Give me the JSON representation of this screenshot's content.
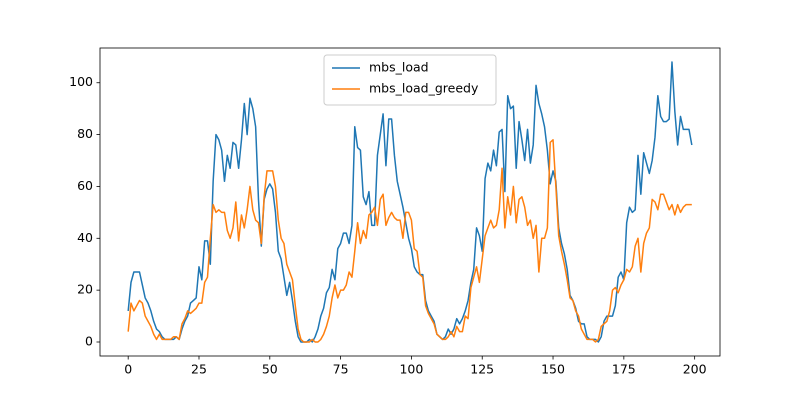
{
  "chart_data": {
    "type": "line",
    "x": [
      0,
      1,
      2,
      3,
      4,
      5,
      6,
      7,
      8,
      9,
      10,
      11,
      12,
      13,
      14,
      15,
      16,
      17,
      18,
      19,
      20,
      21,
      22,
      23,
      24,
      25,
      26,
      27,
      28,
      29,
      30,
      31,
      32,
      33,
      34,
      35,
      36,
      37,
      38,
      39,
      40,
      41,
      42,
      43,
      44,
      45,
      46,
      47,
      48,
      49,
      50,
      51,
      52,
      53,
      54,
      55,
      56,
      57,
      58,
      59,
      60,
      61,
      62,
      63,
      64,
      65,
      66,
      67,
      68,
      69,
      70,
      71,
      72,
      73,
      74,
      75,
      76,
      77,
      78,
      79,
      80,
      81,
      82,
      83,
      84,
      85,
      86,
      87,
      88,
      89,
      90,
      91,
      92,
      93,
      94,
      95,
      96,
      97,
      98,
      99,
      100,
      101,
      102,
      103,
      104,
      105,
      106,
      107,
      108,
      109,
      110,
      111,
      112,
      113,
      114,
      115,
      116,
      117,
      118,
      119,
      120,
      121,
      122,
      123,
      124,
      125,
      126,
      127,
      128,
      129,
      130,
      131,
      132,
      133,
      134,
      135,
      136,
      137,
      138,
      139,
      140,
      141,
      142,
      143,
      144,
      145,
      146,
      147,
      148,
      149,
      150,
      151,
      152,
      153,
      154,
      155,
      156,
      157,
      158,
      159,
      160,
      161,
      162,
      163,
      164,
      165,
      166,
      167,
      168,
      169,
      170,
      171,
      172,
      173,
      174,
      175,
      176,
      177,
      178,
      179,
      180,
      181,
      182,
      183,
      184,
      185,
      186,
      187,
      188,
      189,
      190,
      191,
      192,
      193,
      194,
      195,
      196,
      197,
      198,
      199
    ],
    "series": [
      {
        "name": "mbs_load",
        "color": "#1f77b4",
        "values": [
          12,
          23,
          27,
          27,
          27,
          22,
          17,
          15,
          12,
          8,
          5,
          4,
          2,
          1,
          1,
          1,
          1,
          2,
          1,
          5,
          8,
          10,
          15,
          16,
          17,
          29,
          24,
          39,
          39,
          30,
          62,
          80,
          78,
          74,
          62,
          72,
          67,
          77,
          76,
          67,
          78,
          92,
          80,
          94,
          90,
          83,
          55,
          37,
          55,
          59,
          61,
          59,
          50,
          35,
          32,
          25,
          18,
          23,
          16,
          8,
          2,
          0,
          0,
          0,
          1,
          0,
          2,
          5,
          10,
          13,
          19,
          21,
          28,
          24,
          36,
          38,
          42,
          42,
          38,
          45,
          83,
          75,
          74,
          56,
          53,
          58,
          45,
          45,
          72,
          80,
          88,
          68,
          86,
          86,
          72,
          62,
          57,
          52,
          46,
          40,
          36,
          29,
          27,
          26,
          26,
          16,
          12,
          10,
          8,
          3,
          2,
          1,
          2,
          5,
          3,
          5,
          9,
          7,
          9,
          12,
          16,
          23,
          28,
          44,
          41,
          35,
          63,
          69,
          66,
          74,
          68,
          81,
          82,
          58,
          95,
          90,
          91,
          67,
          85,
          78,
          70,
          82,
          69,
          76,
          99,
          92,
          88,
          83,
          74,
          61,
          66,
          62,
          44,
          38,
          34,
          28,
          18,
          16,
          13,
          8,
          7,
          7,
          2,
          1,
          1,
          1,
          0,
          2,
          8,
          10,
          10,
          10,
          14,
          25,
          27,
          24,
          46,
          52,
          50,
          51,
          72,
          57,
          73,
          69,
          65,
          70,
          79,
          95,
          87,
          85,
          85,
          86,
          108,
          89,
          76,
          87,
          82,
          82,
          82,
          76
        ]
      },
      {
        "name": "mbs_load_greedy",
        "color": "#ff7f0e",
        "values": [
          4,
          15,
          12,
          14,
          16,
          15,
          10,
          8,
          6,
          3,
          1,
          3,
          1,
          1,
          1,
          1,
          2,
          2,
          1,
          7,
          9,
          12,
          11,
          12,
          13,
          15,
          15,
          23,
          25,
          40,
          53,
          50,
          51,
          50,
          50,
          43,
          40,
          44,
          54,
          39,
          49,
          44,
          51,
          60,
          51,
          47,
          46,
          38,
          56,
          66,
          66,
          66,
          60,
          47,
          40,
          38,
          30,
          27,
          24,
          14,
          5,
          1,
          0,
          0,
          0,
          1,
          0,
          0,
          1,
          3,
          6,
          10,
          17,
          22,
          17,
          20,
          20,
          22,
          27,
          25,
          35,
          46,
          38,
          43,
          40,
          49,
          50,
          52,
          45,
          55,
          57,
          45,
          48,
          50,
          48,
          47,
          47,
          40,
          50,
          50,
          47,
          36,
          35,
          26,
          25,
          14,
          11,
          9,
          7,
          3,
          2,
          1,
          1,
          2,
          4,
          2,
          6,
          4,
          4,
          10,
          9,
          21,
          25,
          29,
          23,
          32,
          41,
          44,
          47,
          44,
          45,
          51,
          67,
          44,
          56,
          49,
          60,
          46,
          55,
          56,
          52,
          45,
          47,
          40,
          45,
          27,
          40,
          40,
          44,
          77,
          78,
          60,
          41,
          35,
          30,
          24,
          17,
          16,
          12,
          10,
          5,
          3,
          1,
          1,
          1,
          0,
          1,
          6,
          7,
          8,
          12,
          20,
          21,
          19,
          22,
          24,
          28,
          27,
          29,
          37,
          40,
          27,
          38,
          42,
          44,
          55,
          54,
          51,
          57,
          57,
          54,
          51,
          53,
          49,
          53,
          50,
          52,
          53,
          53,
          53
        ]
      }
    ],
    "xlim": [
      -9.95,
      208.95
    ],
    "ylim": [
      -5.4,
      113.4
    ],
    "xticks": [
      0,
      25,
      50,
      75,
      100,
      125,
      150,
      175,
      200
    ],
    "yticks": [
      0,
      20,
      40,
      60,
      80,
      100
    ],
    "grid": false,
    "legend": "upper center"
  }
}
